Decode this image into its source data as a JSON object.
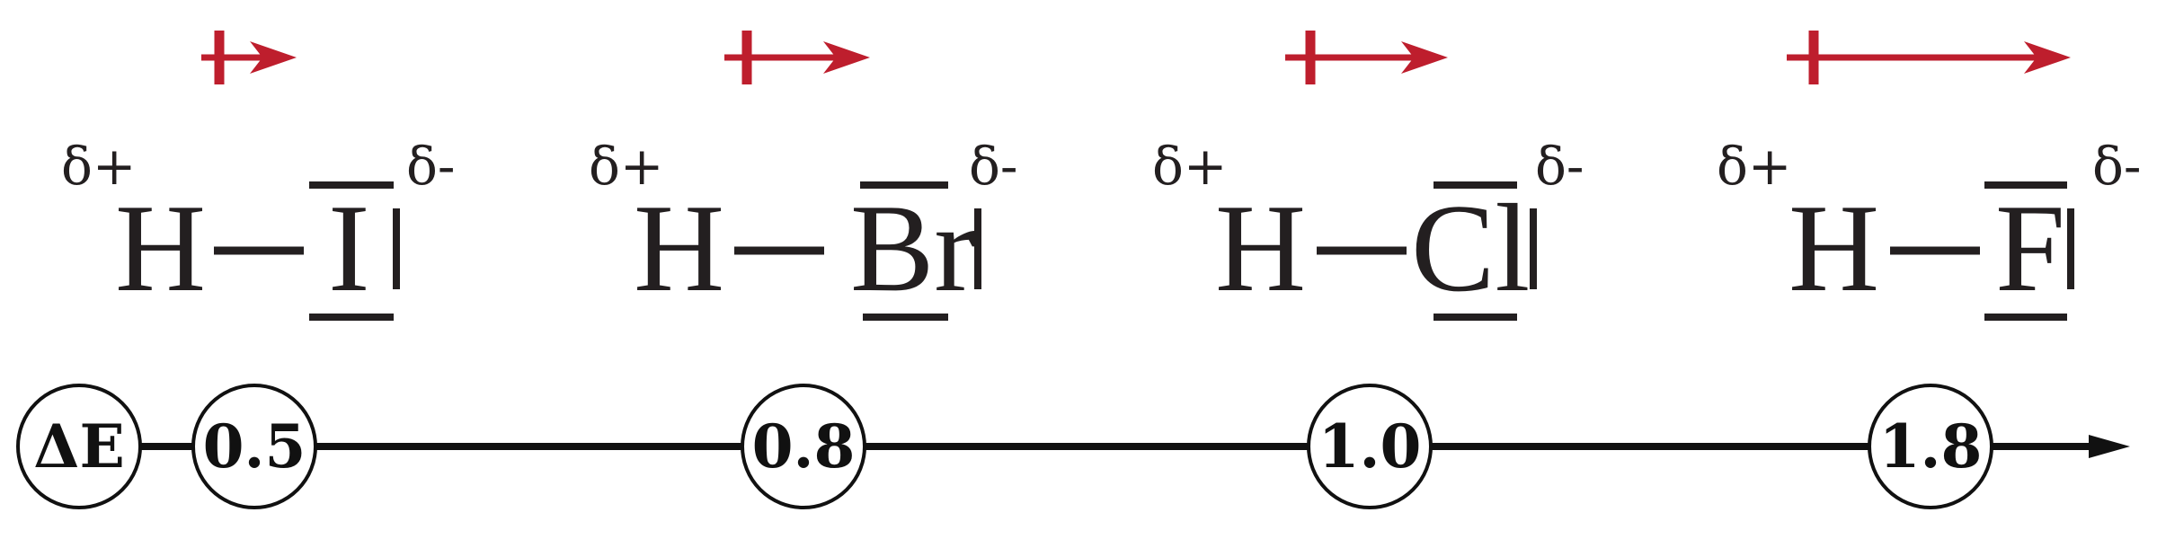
{
  "molecules": [
    {
      "hydrogen": "H",
      "halogen": "I",
      "delta_plus": "δ+",
      "delta_minus": "δ-",
      "delta_e": "0.5"
    },
    {
      "hydrogen": "H",
      "halogen": "Br",
      "delta_plus": "δ+",
      "delta_minus": "δ-",
      "delta_e": "0.8"
    },
    {
      "hydrogen": "H",
      "halogen": "Cl",
      "delta_plus": "δ+",
      "delta_minus": "δ-",
      "delta_e": "1.0"
    },
    {
      "hydrogen": "H",
      "halogen": "F",
      "delta_plus": "δ+",
      "delta_minus": "δ-",
      "delta_e": "1.8"
    }
  ],
  "scale": {
    "label": "ΔE"
  },
  "colors": {
    "dipole_arrow": "#be1e2d",
    "ink": "#231f20",
    "axis": "#111111"
  }
}
